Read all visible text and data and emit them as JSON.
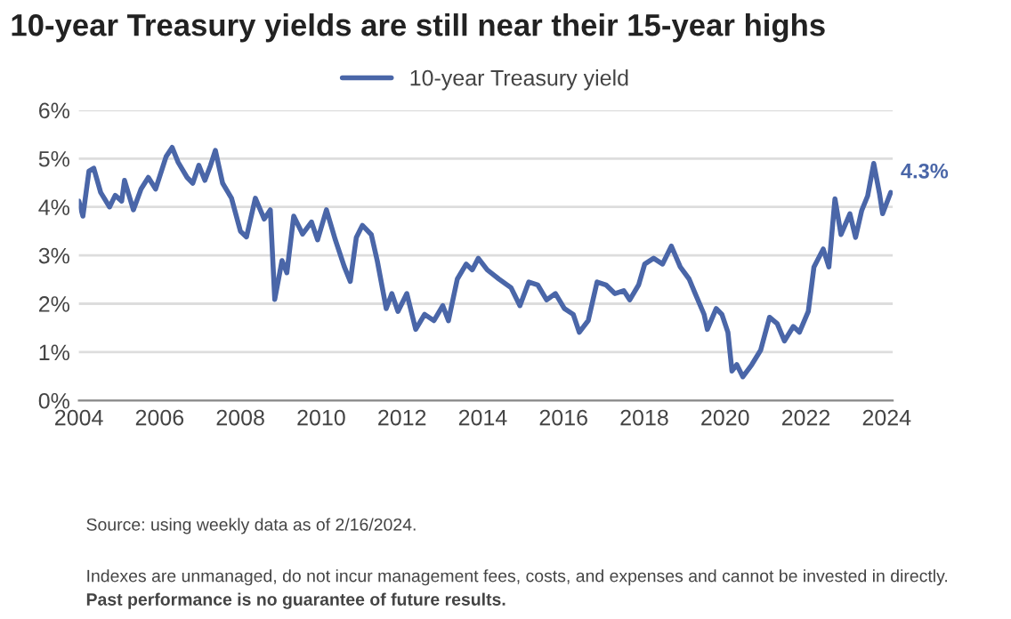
{
  "chart_data": {
    "type": "line",
    "title": "10-year Treasury yields are still near their 15-year highs",
    "x": [
      2004.0,
      2004.1,
      2004.25,
      2004.37,
      2004.54,
      2004.76,
      2004.9,
      2005.06,
      2005.13,
      2005.35,
      2005.54,
      2005.72,
      2005.9,
      2006.16,
      2006.31,
      2006.46,
      2006.68,
      2006.82,
      2006.97,
      2007.12,
      2007.26,
      2007.38,
      2007.56,
      2007.78,
      2008.0,
      2008.15,
      2008.37,
      2008.59,
      2008.74,
      2008.85,
      2009.03,
      2009.15,
      2009.32,
      2009.54,
      2009.76,
      2009.91,
      2010.13,
      2010.35,
      2010.57,
      2010.72,
      2010.87,
      2011.02,
      2011.24,
      2011.39,
      2011.61,
      2011.75,
      2011.9,
      2012.12,
      2012.34,
      2012.56,
      2012.79,
      2013.01,
      2013.15,
      2013.37,
      2013.59,
      2013.74,
      2013.89,
      2014.11,
      2014.4,
      2014.7,
      2014.92,
      2015.14,
      2015.36,
      2015.58,
      2015.8,
      2016.02,
      2016.24,
      2016.39,
      2016.61,
      2016.83,
      2017.05,
      2017.27,
      2017.49,
      2017.64,
      2017.86,
      2018.01,
      2018.23,
      2018.45,
      2018.67,
      2018.89,
      2019.11,
      2019.26,
      2019.48,
      2019.56,
      2019.78,
      2019.92,
      2020.07,
      2020.17,
      2020.29,
      2020.44,
      2020.66,
      2020.88,
      2021.1,
      2021.29,
      2021.47,
      2021.69,
      2021.84,
      2022.06,
      2022.2,
      2022.43,
      2022.57,
      2022.72,
      2022.87,
      2023.09,
      2023.23,
      2023.38,
      2023.53,
      2023.68,
      2023.82,
      2023.9,
      2024.1
    ],
    "series": [
      {
        "name": "10-year Treasury yield",
        "color": "#4a66a8",
        "values": [
          4.12,
          3.81,
          4.74,
          4.8,
          4.3,
          4.0,
          4.24,
          4.12,
          4.55,
          3.94,
          4.37,
          4.61,
          4.37,
          5.04,
          5.23,
          4.92,
          4.61,
          4.49,
          4.86,
          4.55,
          4.86,
          5.17,
          4.49,
          4.18,
          3.5,
          3.38,
          4.18,
          3.75,
          3.94,
          2.09,
          2.89,
          2.64,
          3.81,
          3.44,
          3.69,
          3.32,
          3.94,
          3.32,
          2.77,
          2.46,
          3.37,
          3.62,
          3.43,
          2.88,
          1.9,
          2.21,
          1.84,
          2.21,
          1.47,
          1.78,
          1.65,
          1.96,
          1.65,
          2.51,
          2.82,
          2.7,
          2.94,
          2.7,
          2.51,
          2.33,
          1.96,
          2.45,
          2.39,
          2.08,
          2.21,
          1.9,
          1.78,
          1.41,
          1.65,
          2.45,
          2.39,
          2.21,
          2.27,
          2.08,
          2.39,
          2.82,
          2.94,
          2.82,
          3.19,
          2.76,
          2.51,
          2.21,
          1.78,
          1.47,
          1.9,
          1.78,
          1.41,
          0.61,
          0.74,
          0.49,
          0.74,
          1.04,
          1.72,
          1.59,
          1.23,
          1.53,
          1.41,
          1.84,
          2.76,
          3.13,
          2.76,
          4.17,
          3.43,
          3.86,
          3.37,
          3.92,
          4.23,
          4.9,
          4.29,
          3.86,
          4.3
        ]
      }
    ],
    "xlim": [
      2004,
      2024.15
    ],
    "xticks": [
      2004,
      2006,
      2008,
      2010,
      2012,
      2014,
      2016,
      2018,
      2020,
      2022,
      2024
    ],
    "ylim": [
      0,
      6
    ],
    "yticks": [
      {
        "value": 0,
        "label": "0%"
      },
      {
        "value": 1,
        "label": "1%"
      },
      {
        "value": 2,
        "label": "2%"
      },
      {
        "value": 3,
        "label": "3%"
      },
      {
        "value": 4,
        "label": "4%"
      },
      {
        "value": 5,
        "label": "5%"
      },
      {
        "value": 6,
        "label": "6%"
      }
    ],
    "grid": "y",
    "legend": "top",
    "marker": "none",
    "line_style": "solid",
    "annotations": [
      {
        "text": "4.3%",
        "x": 2024.1,
        "y": 4.3
      },
      "Source: using weekly data as of 2/16/2024.",
      "Indexes are unmanaged, do not incur management fees, costs, and expenses and cannot be invested in directly.",
      "Past performance is no guarantee of future results."
    ]
  }
}
